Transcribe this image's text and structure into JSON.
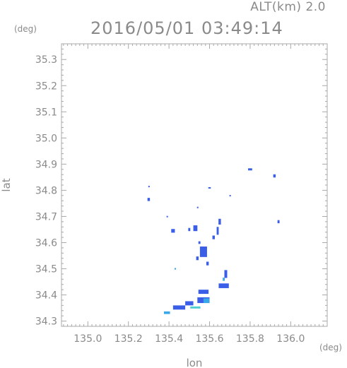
{
  "header": {
    "altitude_label": "ALT(km)  2.0",
    "timestamp": "2016/05/01 03:49:14"
  },
  "axes": {
    "y_unit": "(deg)",
    "x_unit": "(deg)"
  },
  "chart_data": {
    "type": "heatmap",
    "title": "2016/05/01 03:49:14",
    "xlabel": "lon",
    "ylabel": "lat",
    "xlim": [
      134.87,
      136.18
    ],
    "ylim": [
      34.28,
      35.36
    ],
    "x_ticks": [
      "135.0",
      "135.2",
      "135.4",
      "135.6",
      "135.8",
      "136.0"
    ],
    "y_ticks": [
      "34.3",
      "34.4",
      "34.5",
      "34.6",
      "34.7",
      "34.8",
      "34.9",
      "35.0",
      "35.1",
      "35.2",
      "35.3"
    ],
    "grid": false,
    "colors": {
      "low": "#3a5ee8",
      "mid": "#3aa8e8",
      "high": "#4fd0d0"
    },
    "echoes": [
      {
        "lon": 135.3,
        "lat": 34.765,
        "w": 0.012,
        "h": 0.012,
        "level": "low"
      },
      {
        "lon": 135.3,
        "lat": 34.815,
        "w": 0.004,
        "h": 0.004,
        "level": "low"
      },
      {
        "lon": 135.6,
        "lat": 34.81,
        "w": 0.012,
        "h": 0.004,
        "level": "low"
      },
      {
        "lon": 135.8,
        "lat": 34.88,
        "w": 0.02,
        "h": 0.008,
        "level": "low"
      },
      {
        "lon": 135.92,
        "lat": 34.855,
        "w": 0.012,
        "h": 0.012,
        "level": "low"
      },
      {
        "lon": 135.94,
        "lat": 34.68,
        "w": 0.01,
        "h": 0.012,
        "level": "low"
      },
      {
        "lon": 135.7,
        "lat": 34.78,
        "w": 0.004,
        "h": 0.004,
        "level": "low"
      },
      {
        "lon": 135.54,
        "lat": 34.735,
        "w": 0.004,
        "h": 0.004,
        "level": "low"
      },
      {
        "lon": 135.39,
        "lat": 34.7,
        "w": 0.004,
        "h": 0.004,
        "level": "low"
      },
      {
        "lon": 135.42,
        "lat": 34.645,
        "w": 0.018,
        "h": 0.014,
        "level": "low"
      },
      {
        "lon": 135.5,
        "lat": 34.65,
        "w": 0.01,
        "h": 0.012,
        "level": "low"
      },
      {
        "lon": 135.53,
        "lat": 34.655,
        "w": 0.02,
        "h": 0.022,
        "level": "low"
      },
      {
        "lon": 135.65,
        "lat": 34.68,
        "w": 0.012,
        "h": 0.022,
        "level": "low"
      },
      {
        "lon": 135.64,
        "lat": 34.645,
        "w": 0.01,
        "h": 0.03,
        "level": "low"
      },
      {
        "lon": 135.62,
        "lat": 34.62,
        "w": 0.012,
        "h": 0.014,
        "level": "low"
      },
      {
        "lon": 135.55,
        "lat": 34.6,
        "w": 0.01,
        "h": 0.01,
        "level": "low"
      },
      {
        "lon": 135.57,
        "lat": 34.565,
        "w": 0.035,
        "h": 0.04,
        "level": "low"
      },
      {
        "lon": 135.54,
        "lat": 34.54,
        "w": 0.012,
        "h": 0.014,
        "level": "low"
      },
      {
        "lon": 135.59,
        "lat": 34.52,
        "w": 0.012,
        "h": 0.014,
        "level": "low"
      },
      {
        "lon": 135.43,
        "lat": 34.5,
        "w": 0.005,
        "h": 0.006,
        "level": "mid"
      },
      {
        "lon": 135.68,
        "lat": 34.48,
        "w": 0.014,
        "h": 0.03,
        "level": "low"
      },
      {
        "lon": 135.67,
        "lat": 34.46,
        "w": 0.01,
        "h": 0.012,
        "level": "mid"
      },
      {
        "lon": 135.67,
        "lat": 34.435,
        "w": 0.05,
        "h": 0.018,
        "level": "low"
      },
      {
        "lon": 135.57,
        "lat": 34.412,
        "w": 0.05,
        "h": 0.016,
        "level": "low"
      },
      {
        "lon": 135.57,
        "lat": 34.38,
        "w": 0.06,
        "h": 0.022,
        "level": "low"
      },
      {
        "lon": 135.585,
        "lat": 34.378,
        "w": 0.03,
        "h": 0.018,
        "level": "mid"
      },
      {
        "lon": 135.5,
        "lat": 34.368,
        "w": 0.04,
        "h": 0.016,
        "level": "low"
      },
      {
        "lon": 135.45,
        "lat": 34.352,
        "w": 0.06,
        "h": 0.016,
        "level": "low"
      },
      {
        "lon": 135.53,
        "lat": 34.352,
        "w": 0.05,
        "h": 0.008,
        "level": "high"
      },
      {
        "lon": 135.39,
        "lat": 34.332,
        "w": 0.03,
        "h": 0.01,
        "level": "mid"
      }
    ]
  }
}
